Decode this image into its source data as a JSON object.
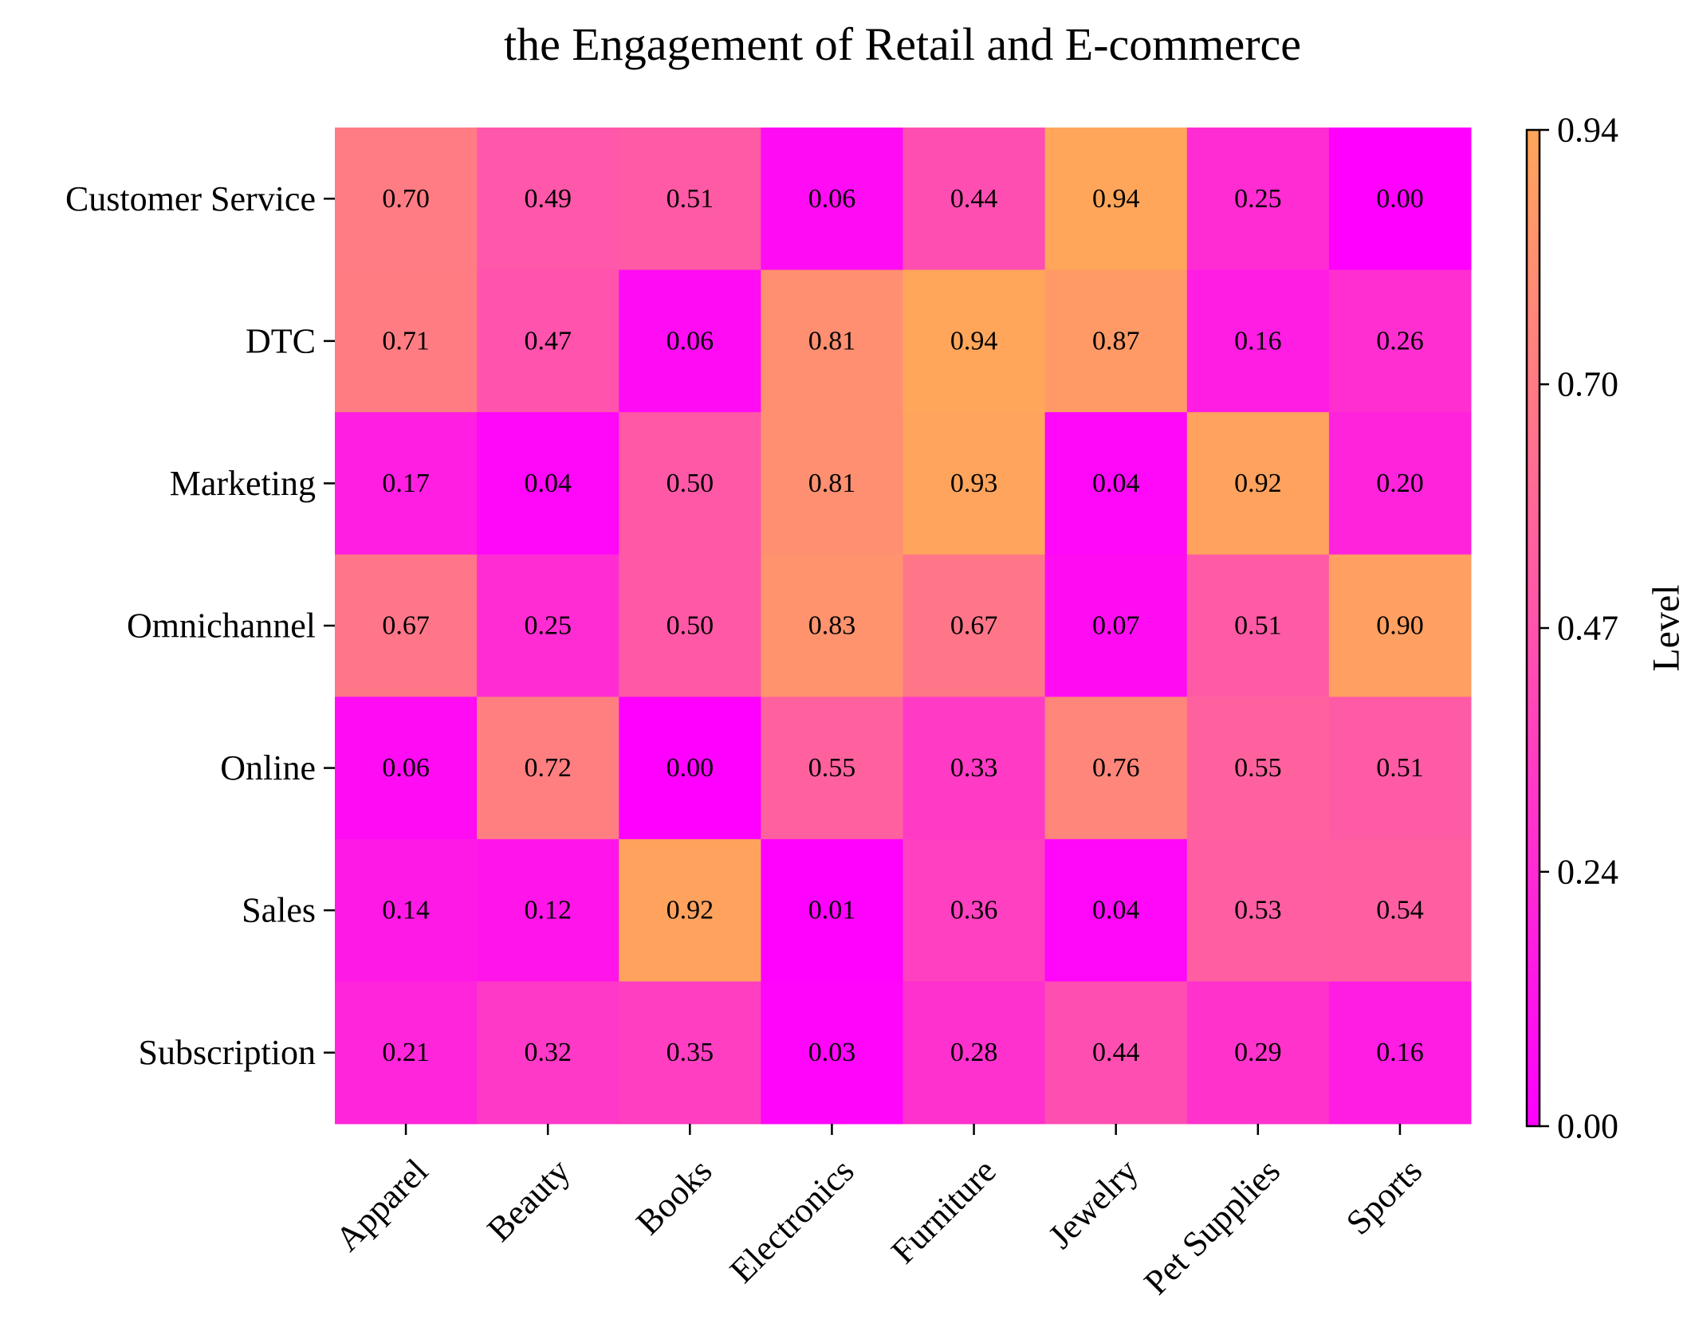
{
  "chart_data": {
    "type": "heatmap",
    "title": "the Engagement of Retail and E-commerce",
    "x_categories": [
      "Apparel",
      "Beauty",
      "Books",
      "Electronics",
      "Furniture",
      "Jewelry",
      "Pet Supplies",
      "Sports"
    ],
    "y_categories": [
      "Customer Service",
      "DTC",
      "Marketing",
      "Omnichannel",
      "Online",
      "Sales",
      "Subscription"
    ],
    "values": [
      [
        0.7,
        0.49,
        0.51,
        0.06,
        0.44,
        0.94,
        0.25,
        0.0
      ],
      [
        0.71,
        0.47,
        0.06,
        0.81,
        0.94,
        0.87,
        0.16,
        0.26
      ],
      [
        0.17,
        0.04,
        0.5,
        0.81,
        0.93,
        0.04,
        0.92,
        0.2
      ],
      [
        0.67,
        0.25,
        0.5,
        0.83,
        0.67,
        0.07,
        0.51,
        0.9
      ],
      [
        0.06,
        0.72,
        0.0,
        0.55,
        0.33,
        0.76,
        0.55,
        0.51
      ],
      [
        0.14,
        0.12,
        0.92,
        0.01,
        0.36,
        0.04,
        0.53,
        0.54
      ],
      [
        0.21,
        0.32,
        0.35,
        0.03,
        0.28,
        0.44,
        0.29,
        0.16
      ]
    ],
    "colorbar": {
      "label": "Level",
      "range": [
        0.0,
        0.94
      ],
      "ticks": [
        "0.00",
        "0.24",
        "0.47",
        "0.70",
        "0.94"
      ],
      "colormap": "spring",
      "color_low": "#ff00ff",
      "color_high": "#ffa65a"
    },
    "grid": false
  }
}
